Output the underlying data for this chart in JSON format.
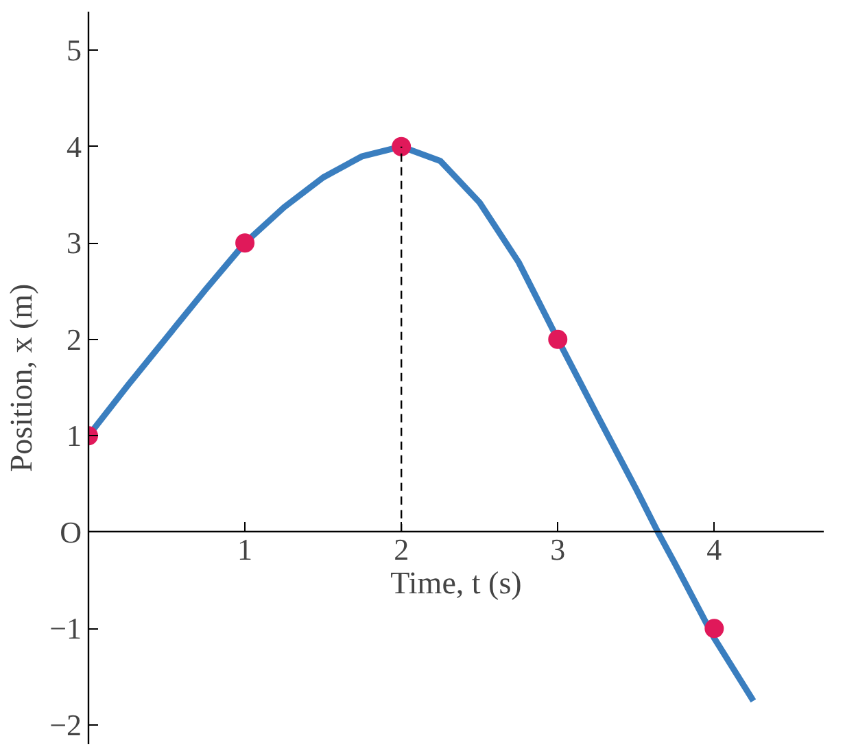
{
  "chart_data": {
    "type": "line",
    "xlabel": "Time, t (s)",
    "ylabel": "Position, x (m)",
    "xlim": [
      0,
      4.7
    ],
    "ylim": [
      -2.2,
      5.4
    ],
    "xticks": [
      {
        "value": 0,
        "label": null
      },
      1,
      2,
      3,
      4
    ],
    "yticks": [
      -2,
      -1,
      {
        "value": 0,
        "label": "O"
      },
      1,
      2,
      3,
      4,
      5
    ],
    "grid": false,
    "series": [
      {
        "color": "#3a7ebf",
        "x": [
          0,
          0.25,
          0.5,
          0.75,
          1,
          1.25,
          1.5,
          1.75,
          2,
          2.25,
          2.5,
          2.75,
          3,
          3.25,
          3.5,
          3.64,
          3.75,
          4,
          4.25
        ],
        "values": [
          1,
          1.52,
          2.02,
          2.52,
          3,
          3.37,
          3.68,
          3.9,
          4,
          3.85,
          3.42,
          2.8,
          2,
          1.22,
          0.45,
          0,
          -0.33,
          -1.1,
          -1.75
        ]
      },
      {
        "type": "scatter",
        "color": "#e0195a",
        "marker": "circle",
        "x": [
          0,
          1,
          2,
          3,
          4
        ],
        "values": [
          1,
          3,
          4,
          2,
          -1
        ]
      }
    ],
    "ref_lines": [
      {
        "axis": "x",
        "value": 2,
        "color": "#000000",
        "line_style": "dashed"
      }
    ]
  }
}
